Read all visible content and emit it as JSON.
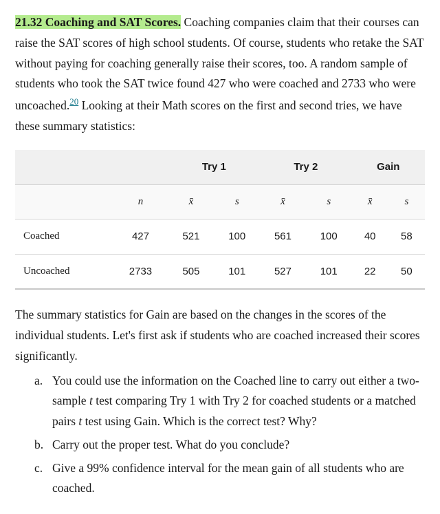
{
  "problem_number": "21.32",
  "problem_title": "Coaching and SAT Scores",
  "intro_text_1": " Coaching companies claim that their courses can raise the SAT scores of high school students. Of course, students who retake the SAT without paying for coaching generally raise their scores, too. A random sample of students who took the SAT twice found 427 who were coached and 2733 who were uncoached.",
  "footnote_ref": "20",
  "intro_text_2": " Looking at their Math scores on the first and second tries, we have these summary statistics:",
  "table": {
    "group_headers": {
      "try1": "Try 1",
      "try2": "Try 2",
      "gain": "Gain"
    },
    "sub_headers": {
      "n": "n",
      "xbar": "x̄",
      "s": "s"
    },
    "rows": [
      {
        "label": "Coached",
        "n": "427",
        "try1_x": "521",
        "try1_s": "100",
        "try2_x": "561",
        "try2_s": "100",
        "gain_x": "40",
        "gain_s": "58"
      },
      {
        "label": "Uncoached",
        "n": "2733",
        "try1_x": "505",
        "try1_s": "101",
        "try2_x": "527",
        "try2_s": "101",
        "gain_x": "22",
        "gain_s": "50"
      }
    ]
  },
  "mid_text": "The summary statistics for Gain are based on the changes in the scores of the individual students. Let's first ask if students who are coached increased their scores significantly.",
  "questions": {
    "a": {
      "marker": "a.",
      "pre": "You could use the information on the Coached line to carry out either a two-sample ",
      "it1": "t",
      "mid1": " test comparing Try 1 with Try 2 for coached students or a matched pairs ",
      "it2": "t",
      "post": " test using Gain. Which is the correct test? Why?"
    },
    "b": {
      "marker": "b.",
      "text": "Carry out the proper test. What do you conclude?"
    },
    "c": {
      "marker": "c.",
      "text": "Give a 99% confidence interval for the mean gain of all students who are coached."
    }
  }
}
